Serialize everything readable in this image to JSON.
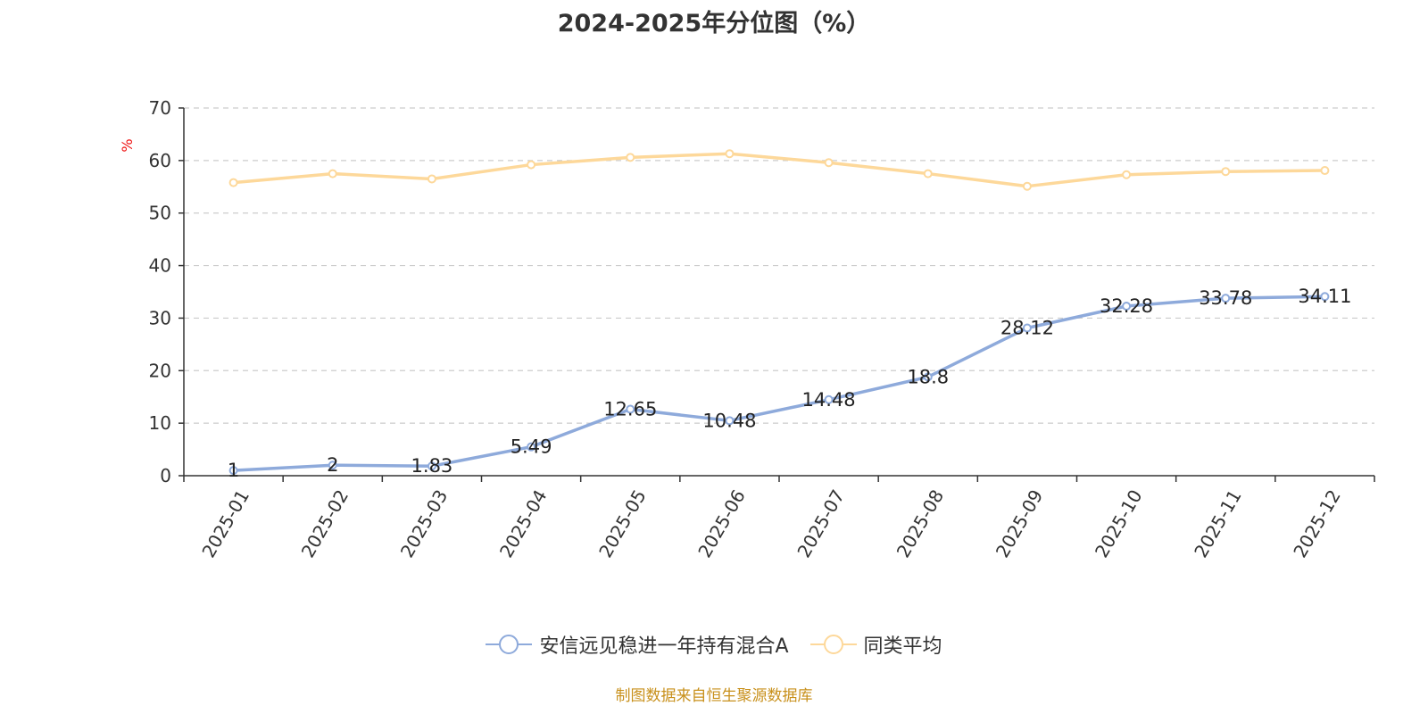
{
  "chart_data": {
    "type": "line",
    "title": "2024-2025年分位图（%）",
    "ylabel": "%",
    "xlabel": "",
    "categories": [
      "2025-01",
      "2025-02",
      "2025-03",
      "2025-04",
      "2025-05",
      "2025-06",
      "2025-07",
      "2025-08",
      "2025-09",
      "2025-10",
      "2025-11",
      "2025-12"
    ],
    "ylim": [
      0,
      70
    ],
    "yticks": [
      "0",
      "10",
      "20",
      "30",
      "40",
      "50",
      "60",
      "70"
    ],
    "grid": true,
    "legend_position": "bottom",
    "series": [
      {
        "name": "安信远见稳进一年持有混合A",
        "color": "#8eaadb",
        "values": [
          1,
          2,
          1.83,
          5.49,
          12.65,
          10.48,
          14.48,
          18.8,
          28.12,
          32.28,
          33.78,
          34.11
        ],
        "labels": [
          "1",
          "2",
          "1.83",
          "5.49",
          "12.65",
          "10.48",
          "14.48",
          "18.8",
          "28.12",
          "32.28",
          "33.78",
          "34.11"
        ]
      },
      {
        "name": "同类平均",
        "color": "#fdd89a",
        "values": [
          55.8,
          57.5,
          56.5,
          59.2,
          60.6,
          61.3,
          59.6,
          57.5,
          55.1,
          57.3,
          57.9,
          58.1
        ]
      }
    ],
    "source": "制图数据来自恒生聚源数据库"
  }
}
